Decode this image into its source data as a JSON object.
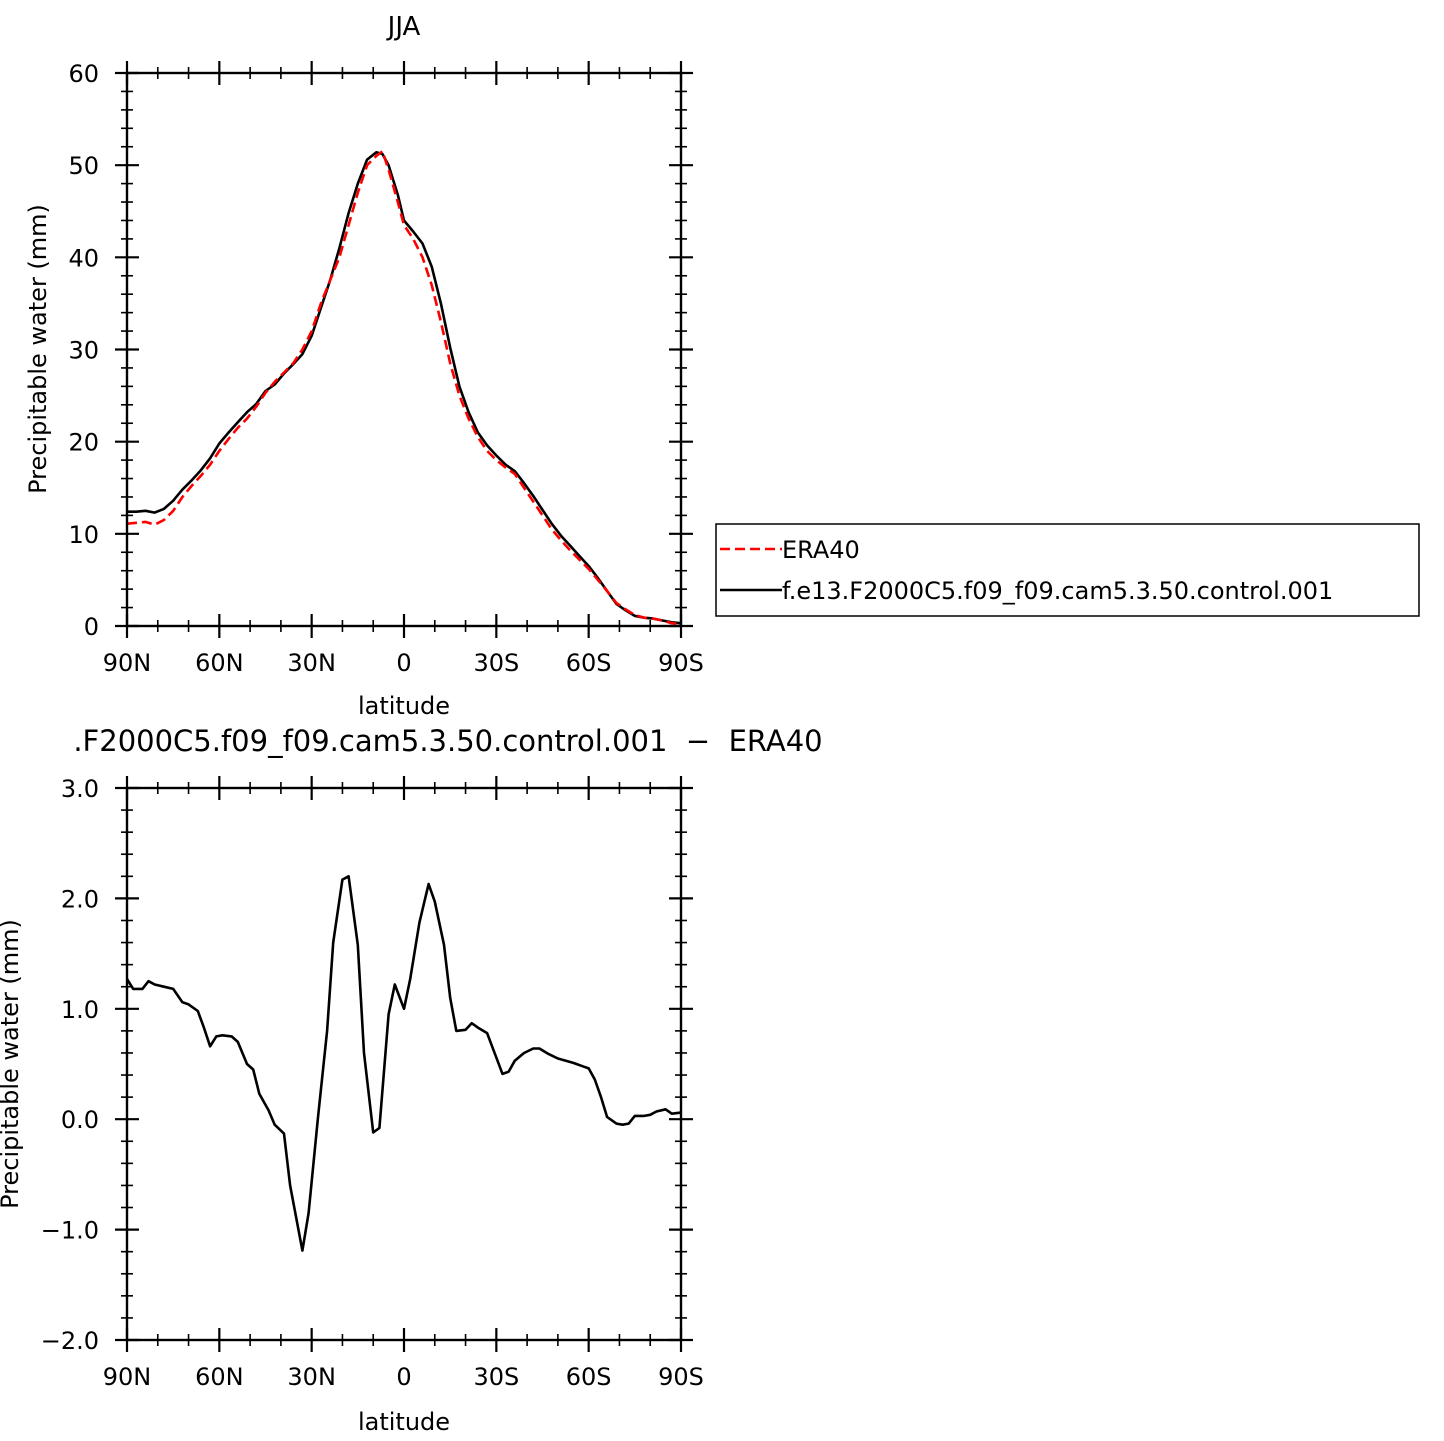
{
  "top_title": "JJA",
  "bottom_title": ".F2000C5.f09_f09.cam5.3.50.control.001  −  ERA40",
  "legend": {
    "era_label": "ERA40",
    "model_label": "f.e13.F2000C5.f09_f09.cam5.3.50.control.001"
  },
  "colors": {
    "era": "#ff0000",
    "model": "#000000"
  },
  "chart_data": [
    {
      "type": "line",
      "title": "JJA",
      "xlabel": "latitude",
      "ylabel": "Precipitable water (mm)",
      "xlim": [
        90,
        -90
      ],
      "ylim": [
        0,
        60
      ],
      "xticks": [
        90,
        60,
        30,
        0,
        -30,
        -60,
        -90
      ],
      "xticklabels": [
        "90N",
        "60N",
        "30N",
        "0",
        "30S",
        "60S",
        "90S"
      ],
      "yticks": [
        0,
        10,
        20,
        30,
        40,
        50,
        60
      ],
      "yticklabels": [
        "0",
        "10",
        "20",
        "30",
        "40",
        "50",
        "60"
      ],
      "legend_position": "right",
      "series": [
        {
          "name": "ERA40",
          "style": "dashed",
          "points": [
            [
              90,
              11.1
            ],
            [
              87,
              11.2
            ],
            [
              84,
              11.3
            ],
            [
              81,
              11.0
            ],
            [
              78,
              11.5
            ],
            [
              75,
              12.5
            ],
            [
              72,
              14.0
            ],
            [
              69,
              15.2
            ],
            [
              66,
              16.3
            ],
            [
              63,
              17.5
            ],
            [
              60,
              19.0
            ],
            [
              57,
              20.3
            ],
            [
              54,
              21.5
            ],
            [
              51,
              22.5
            ],
            [
              48,
              23.8
            ],
            [
              45,
              25.3
            ],
            [
              42,
              26.5
            ],
            [
              39,
              27.5
            ],
            [
              36,
              28.5
            ],
            [
              33,
              30.0
            ],
            [
              30,
              32.0
            ],
            [
              27,
              35.0
            ],
            [
              24,
              37.5
            ],
            [
              21,
              40.0
            ],
            [
              18,
              43.5
            ],
            [
              15,
              47.0
            ],
            [
              12,
              50.0
            ],
            [
              9,
              51.0
            ],
            [
              7,
              51.5
            ],
            [
              5,
              49.5
            ],
            [
              2,
              46.0
            ],
            [
              0,
              43.5
            ],
            [
              -3,
              42.0
            ],
            [
              -6,
              40.0
            ],
            [
              -9,
              37.0
            ],
            [
              -12,
              33.0
            ],
            [
              -15,
              28.5
            ],
            [
              -18,
              25.0
            ],
            [
              -21,
              22.5
            ],
            [
              -24,
              20.5
            ],
            [
              -27,
              19.0
            ],
            [
              -30,
              18.0
            ],
            [
              -33,
              17.2
            ],
            [
              -36,
              16.5
            ],
            [
              -39,
              15.0
            ],
            [
              -42,
              13.5
            ],
            [
              -45,
              12.0
            ],
            [
              -48,
              10.5
            ],
            [
              -51,
              9.3
            ],
            [
              -54,
              8.2
            ],
            [
              -57,
              7.2
            ],
            [
              -60,
              6.2
            ],
            [
              -63,
              5.0
            ],
            [
              -66,
              3.8
            ],
            [
              -69,
              2.5
            ],
            [
              -72,
              1.8
            ],
            [
              -75,
              1.2
            ],
            [
              -78,
              0.9
            ],
            [
              -81,
              0.8
            ],
            [
              -84,
              0.6
            ],
            [
              -87,
              0.3
            ],
            [
              -90,
              0.2
            ]
          ]
        },
        {
          "name": "f.e13.F2000C5.f09_f09.cam5.3.50.control.001",
          "style": "solid",
          "points": [
            [
              90,
              12.4
            ],
            [
              87,
              12.4
            ],
            [
              84,
              12.5
            ],
            [
              81,
              12.3
            ],
            [
              78,
              12.7
            ],
            [
              75,
              13.6
            ],
            [
              72,
              14.8
            ],
            [
              69,
              15.8
            ],
            [
              66,
              16.9
            ],
            [
              63,
              18.2
            ],
            [
              60,
              19.8
            ],
            [
              57,
              21.0
            ],
            [
              54,
              22.1
            ],
            [
              51,
              23.2
            ],
            [
              48,
              24.1
            ],
            [
              45,
              25.5
            ],
            [
              42,
              26.2
            ],
            [
              39,
              27.4
            ],
            [
              36,
              28.4
            ],
            [
              33,
              29.5
            ],
            [
              30,
              31.5
            ],
            [
              27,
              34.5
            ],
            [
              24,
              37.5
            ],
            [
              21,
              41.0
            ],
            [
              18,
              44.8
            ],
            [
              15,
              48.0
            ],
            [
              12,
              50.6
            ],
            [
              9,
              51.4
            ],
            [
              7,
              51.2
            ],
            [
              5,
              50.0
            ],
            [
              2,
              46.8
            ],
            [
              0,
              44.0
            ],
            [
              -3,
              42.8
            ],
            [
              -6,
              41.5
            ],
            [
              -9,
              39.0
            ],
            [
              -12,
              35.0
            ],
            [
              -15,
              30.2
            ],
            [
              -18,
              26.0
            ],
            [
              -21,
              23.2
            ],
            [
              -24,
              21.0
            ],
            [
              -27,
              19.6
            ],
            [
              -30,
              18.5
            ],
            [
              -33,
              17.5
            ],
            [
              -36,
              16.8
            ],
            [
              -39,
              15.5
            ],
            [
              -42,
              14.1
            ],
            [
              -45,
              12.6
            ],
            [
              -48,
              11.1
            ],
            [
              -51,
              9.8
            ],
            [
              -54,
              8.7
            ],
            [
              -57,
              7.6
            ],
            [
              -60,
              6.5
            ],
            [
              -63,
              5.2
            ],
            [
              -66,
              3.8
            ],
            [
              -69,
              2.4
            ],
            [
              -72,
              1.7
            ],
            [
              -75,
              1.1
            ],
            [
              -78,
              0.9
            ],
            [
              -81,
              0.8
            ],
            [
              -84,
              0.6
            ],
            [
              -87,
              0.4
            ],
            [
              -90,
              0.3
            ]
          ]
        }
      ]
    },
    {
      "type": "line",
      "title": ".F2000C5.f09_f09.cam5.3.50.control.001  −  ERA40",
      "xlabel": "latitude",
      "ylabel": "Precipitable water (mm)",
      "xlim": [
        90,
        -90
      ],
      "ylim": [
        -2.0,
        3.0
      ],
      "xticks": [
        90,
        60,
        30,
        0,
        -30,
        -60,
        -90
      ],
      "xticklabels": [
        "90N",
        "60N",
        "30N",
        "0",
        "30S",
        "60S",
        "90S"
      ],
      "yticks": [
        -2.0,
        -1.0,
        0.0,
        1.0,
        2.0,
        3.0
      ],
      "yticklabels": [
        "−2.0",
        "−1.0",
        "0.0",
        "1.0",
        "2.0",
        "3.0"
      ],
      "series": [
        {
          "style": "solid",
          "points": [
            [
              90,
              1.27
            ],
            [
              88,
              1.18
            ],
            [
              85,
              1.18
            ],
            [
              83,
              1.25
            ],
            [
              81,
              1.22
            ],
            [
              78,
              1.2
            ],
            [
              75,
              1.18
            ],
            [
              72,
              1.06
            ],
            [
              70,
              1.04
            ],
            [
              67,
              0.98
            ],
            [
              65,
              0.83
            ],
            [
              63,
              0.66
            ],
            [
              61,
              0.75
            ],
            [
              59,
              0.76
            ],
            [
              56,
              0.75
            ],
            [
              54,
              0.7
            ],
            [
              51,
              0.5
            ],
            [
              49,
              0.45
            ],
            [
              47,
              0.23
            ],
            [
              44,
              0.08
            ],
            [
              42,
              -0.05
            ],
            [
              39,
              -0.13
            ],
            [
              37,
              -0.6
            ],
            [
              33,
              -1.19
            ],
            [
              31,
              -0.85
            ],
            [
              28,
              0.0
            ],
            [
              25,
              0.8
            ],
            [
              23,
              1.6
            ],
            [
              20,
              2.17
            ],
            [
              18,
              2.2
            ],
            [
              15,
              1.58
            ],
            [
              13,
              0.6
            ],
            [
              10,
              -0.12
            ],
            [
              8,
              -0.08
            ],
            [
              5,
              0.95
            ],
            [
              3,
              1.22
            ],
            [
              0,
              1.0
            ],
            [
              -2,
              1.27
            ],
            [
              -5,
              1.78
            ],
            [
              -8,
              2.13
            ],
            [
              -10,
              1.97
            ],
            [
              -13,
              1.58
            ],
            [
              -15,
              1.1
            ],
            [
              -17,
              0.8
            ],
            [
              -20,
              0.81
            ],
            [
              -22,
              0.87
            ],
            [
              -24,
              0.83
            ],
            [
              -27,
              0.78
            ],
            [
              -29,
              0.63
            ],
            [
              -32,
              0.41
            ],
            [
              -34,
              0.43
            ],
            [
              -36,
              0.53
            ],
            [
              -39,
              0.6
            ],
            [
              -42,
              0.64
            ],
            [
              -44,
              0.64
            ],
            [
              -47,
              0.59
            ],
            [
              -50,
              0.55
            ],
            [
              -55,
              0.51
            ],
            [
              -58,
              0.48
            ],
            [
              -60,
              0.46
            ],
            [
              -62,
              0.36
            ],
            [
              -64,
              0.2
            ],
            [
              -66,
              0.02
            ],
            [
              -69,
              -0.04
            ],
            [
              -71,
              -0.05
            ],
            [
              -73,
              -0.04
            ],
            [
              -75,
              0.03
            ],
            [
              -78,
              0.03
            ],
            [
              -80,
              0.04
            ],
            [
              -82,
              0.07
            ],
            [
              -85,
              0.09
            ],
            [
              -87,
              0.05
            ],
            [
              -90,
              0.06
            ]
          ]
        }
      ]
    }
  ]
}
